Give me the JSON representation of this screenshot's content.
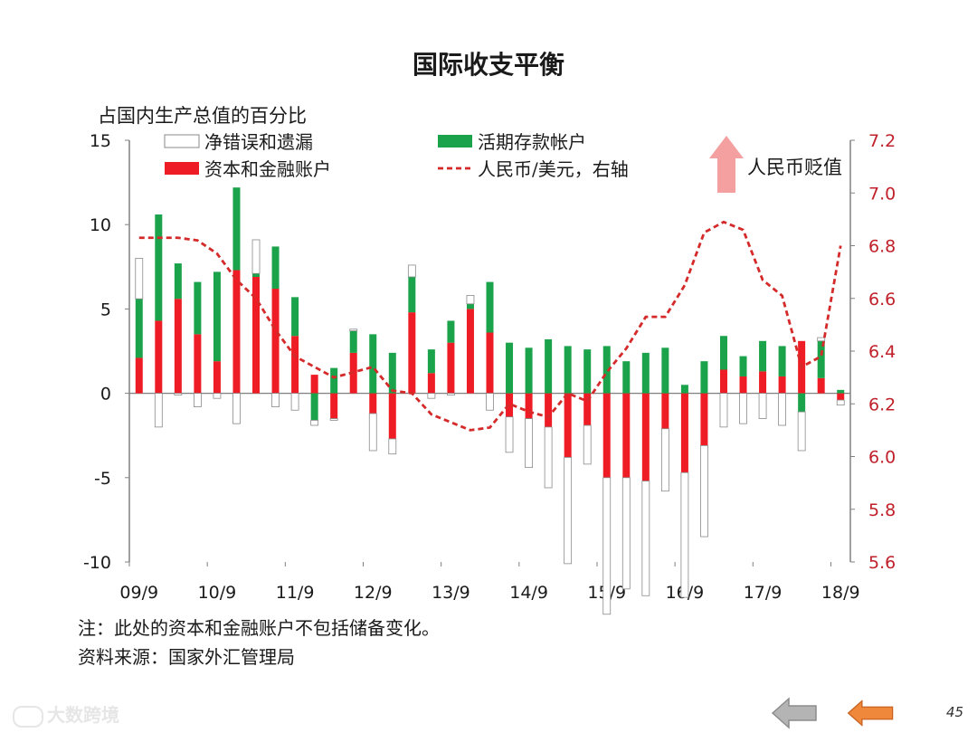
{
  "title": "国际收支平衡",
  "note_line1": "注：此处的资本和金融账户不包括储备变化。",
  "note_line2": "资料来源：国家外汇管理局",
  "watermark": "大数跨境",
  "page_number": "45",
  "arrow_label": "人民币贬值",
  "colors": {
    "green": "#1aa34a",
    "red": "#ee1c24",
    "errors_stroke": "#8a8a8a",
    "rmb_line": "#d42a2a",
    "arrow": "#f4a0a0",
    "nav_gray": "#b4b4b4",
    "nav_orange": "#f0883c"
  },
  "chart_data": {
    "type": "bar",
    "title": "国际收支平衡",
    "ylabel": "占国内生产总值的百分比",
    "y2label": "",
    "ylim": [
      -10,
      15
    ],
    "y2lim": [
      5.6,
      7.2
    ],
    "yticks": [
      "15",
      "10",
      "5",
      "0",
      "-5",
      "-10"
    ],
    "y2ticks": [
      "7.2",
      "7.0",
      "6.8",
      "6.6",
      "6.4",
      "6.2",
      "6.0",
      "5.8",
      "5.6"
    ],
    "xticks": [
      "09/9",
      "10/9",
      "11/9",
      "12/9",
      "13/9",
      "14/9",
      "15/9",
      "16/9",
      "17/9",
      "18/9"
    ],
    "legend": [
      "净错误和遗漏",
      "活期存款帐户",
      "资本和金融账户",
      "人民币/美元，右轴"
    ],
    "quarters": [
      "09Q3",
      "09Q4",
      "10Q1",
      "10Q2",
      "10Q3",
      "10Q4",
      "11Q1",
      "11Q2",
      "11Q3",
      "11Q4",
      "12Q1",
      "12Q2",
      "12Q3",
      "12Q4",
      "13Q1",
      "13Q2",
      "13Q3",
      "13Q4",
      "14Q1",
      "14Q2",
      "14Q3",
      "14Q4",
      "15Q1",
      "15Q2",
      "15Q3",
      "15Q4",
      "16Q1",
      "16Q2",
      "16Q3",
      "16Q4",
      "17Q1",
      "17Q2",
      "17Q3",
      "17Q4",
      "18Q1",
      "18Q2",
      "18Q3"
    ],
    "series": [
      {
        "name": "活期存款帐户",
        "values": [
          3.5,
          6.3,
          2.1,
          3.1,
          5.3,
          4.9,
          0.2,
          2.5,
          2.3,
          -1.6,
          1.5,
          1.3,
          3.5,
          2.4,
          2.1,
          1.4,
          1.3,
          0.3,
          3.0,
          3.0,
          2.7,
          3.2,
          2.8,
          2.6,
          2.8,
          1.9,
          2.4,
          2.7,
          0.5,
          1.9,
          2.0,
          1.2,
          1.8,
          1.8,
          -1.1,
          2.2,
          0.2
        ]
      },
      {
        "name": "资本和金融账户",
        "values": [
          2.1,
          4.3,
          5.6,
          3.5,
          1.9,
          7.3,
          6.9,
          6.2,
          3.4,
          1.1,
          -1.5,
          2.4,
          -1.2,
          -2.7,
          4.8,
          1.2,
          3.0,
          5.0,
          3.6,
          -1.4,
          -1.5,
          -2.0,
          -3.8,
          -1.9,
          -5.0,
          -5.0,
          -5.2,
          -2.1,
          -4.7,
          -3.1,
          1.4,
          1.0,
          1.3,
          1.0,
          3.1,
          0.9,
          -0.4
        ]
      },
      {
        "name": "净错误和遗漏",
        "values": [
          2.4,
          -2.0,
          -0.1,
          -0.8,
          -0.3,
          -1.8,
          2.0,
          -0.8,
          -1.0,
          -0.3,
          -0.1,
          0.1,
          -2.2,
          -0.9,
          0.7,
          -0.3,
          -0.1,
          0.5,
          -1.0,
          -2.1,
          -2.9,
          -3.6,
          -6.3,
          -2.3,
          -8.1,
          -6.6,
          -6.8,
          -3.7,
          -7.4,
          -5.4,
          -2.0,
          -1.8,
          -1.5,
          -1.9,
          -2.3,
          0.2,
          -0.3
        ]
      }
    ],
    "rmb_usd": {
      "name": "人民币/美元，右轴",
      "values": [
        6.83,
        6.83,
        6.83,
        6.82,
        6.77,
        6.67,
        6.6,
        6.48,
        6.38,
        6.34,
        6.3,
        6.32,
        6.34,
        6.25,
        6.24,
        6.16,
        6.13,
        6.1,
        6.11,
        6.2,
        6.17,
        6.15,
        6.24,
        6.21,
        6.32,
        6.41,
        6.53,
        6.53,
        6.65,
        6.85,
        6.89,
        6.86,
        6.67,
        6.61,
        6.34,
        6.38,
        6.8
      ]
    }
  }
}
